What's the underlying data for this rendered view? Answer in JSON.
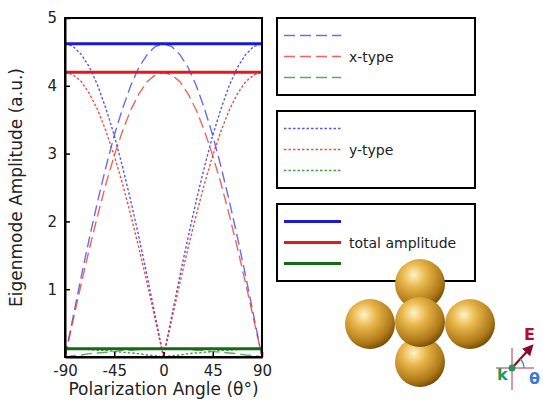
{
  "chart_data": {
    "type": "line",
    "x_label": "Polarization Angle (θ°)",
    "y_label": "Eigenmode Amplitude  (a.u.)",
    "xlim": [
      -90,
      90
    ],
    "xticks": [
      -90,
      -45,
      0,
      45,
      90
    ],
    "ylim": [
      0,
      5
    ],
    "yticks": [
      1,
      2,
      3,
      4,
      5
    ],
    "legend": "right",
    "x": [
      -90,
      -82.5,
      -75,
      -67.5,
      -60,
      -52.5,
      -45,
      -37.5,
      -30,
      -22.5,
      -15,
      -7.5,
      0,
      7.5,
      15,
      22.5,
      30,
      37.5,
      45,
      52.5,
      60,
      67.5,
      75,
      82.5,
      90
    ],
    "series": [
      {
        "name": null,
        "color": "#3b3be6",
        "line_style": "dashed",
        "values": [
          0,
          0.6,
          1.2,
          1.77,
          2.31,
          2.81,
          3.27,
          3.66,
          4.0,
          4.27,
          4.46,
          4.58,
          4.62,
          4.58,
          4.46,
          4.27,
          4.0,
          3.66,
          3.27,
          2.81,
          2.31,
          1.77,
          1.2,
          0.6,
          0
        ]
      },
      {
        "name": "x-type",
        "color": "#e8312a",
        "line_style": "dashed",
        "values": [
          0,
          0.55,
          1.09,
          1.61,
          2.1,
          2.56,
          2.97,
          3.33,
          3.64,
          3.88,
          4.06,
          4.16,
          4.2,
          4.16,
          4.06,
          3.88,
          3.64,
          3.33,
          2.97,
          2.56,
          2.1,
          1.61,
          1.09,
          0.55,
          0
        ]
      },
      {
        "name": null,
        "color": "#2e8b2e",
        "line_style": "dashed",
        "values": [
          0,
          0.02,
          0.03,
          0.05,
          0.06,
          0.07,
          0.08,
          0.1,
          0.1,
          0.11,
          0.12,
          0.12,
          0.12,
          0.12,
          0.12,
          0.11,
          0.1,
          0.1,
          0.08,
          0.07,
          0.06,
          0.05,
          0.03,
          0.02,
          0
        ]
      },
      {
        "name": null,
        "color": "#3b3be6",
        "line_style": "dotted",
        "values": [
          4.62,
          4.58,
          4.46,
          4.27,
          4.0,
          3.66,
          3.27,
          2.81,
          2.31,
          1.77,
          1.2,
          0.6,
          0,
          0.6,
          1.2,
          1.77,
          2.31,
          2.81,
          3.27,
          3.66,
          4.0,
          4.27,
          4.46,
          4.58,
          4.62
        ]
      },
      {
        "name": "y-type",
        "color": "#e8312a",
        "line_style": "dotted",
        "values": [
          4.2,
          4.16,
          4.06,
          3.88,
          3.64,
          3.33,
          2.97,
          2.56,
          2.1,
          1.61,
          1.09,
          0.55,
          0,
          0.55,
          1.09,
          1.61,
          2.1,
          2.56,
          2.97,
          3.33,
          3.64,
          3.88,
          4.06,
          4.16,
          4.2
        ]
      },
      {
        "name": null,
        "color": "#2e8b2e",
        "line_style": "dotted",
        "values": [
          0.12,
          0.12,
          0.12,
          0.11,
          0.1,
          0.1,
          0.08,
          0.07,
          0.06,
          0.05,
          0.03,
          0.02,
          0,
          0.02,
          0.03,
          0.05,
          0.06,
          0.07,
          0.08,
          0.1,
          0.1,
          0.11,
          0.12,
          0.12,
          0.12
        ]
      },
      {
        "name": null,
        "color": "#1a1ad6",
        "line_style": "solid",
        "values": [
          4.62,
          4.62,
          4.62,
          4.62,
          4.62,
          4.62,
          4.62,
          4.62,
          4.62,
          4.62,
          4.62,
          4.62,
          4.62,
          4.62,
          4.62,
          4.62,
          4.62,
          4.62,
          4.62,
          4.62,
          4.62,
          4.62,
          4.62,
          4.62,
          4.62
        ]
      },
      {
        "name": "total amplitude",
        "color": "#e01a1a",
        "line_style": "solid",
        "values": [
          4.2,
          4.2,
          4.2,
          4.2,
          4.2,
          4.2,
          4.2,
          4.2,
          4.2,
          4.2,
          4.2,
          4.2,
          4.2,
          4.2,
          4.2,
          4.2,
          4.2,
          4.2,
          4.2,
          4.2,
          4.2,
          4.2,
          4.2,
          4.2,
          4.2
        ]
      },
      {
        "name": null,
        "color": "#146b14",
        "line_style": "solid",
        "values": [
          0.12,
          0.12,
          0.12,
          0.12,
          0.12,
          0.12,
          0.12,
          0.12,
          0.12,
          0.12,
          0.12,
          0.12,
          0.12,
          0.12,
          0.12,
          0.12,
          0.12,
          0.12,
          0.12,
          0.12,
          0.12,
          0.12,
          0.12,
          0.12,
          0.12
        ]
      }
    ],
    "annotations": [
      {
        "text": "k",
        "color": "#1f9a5a"
      },
      {
        "text": "E",
        "color": "#b01030"
      },
      {
        "text": "θ",
        "color": "#3a7ad0"
      }
    ]
  }
}
